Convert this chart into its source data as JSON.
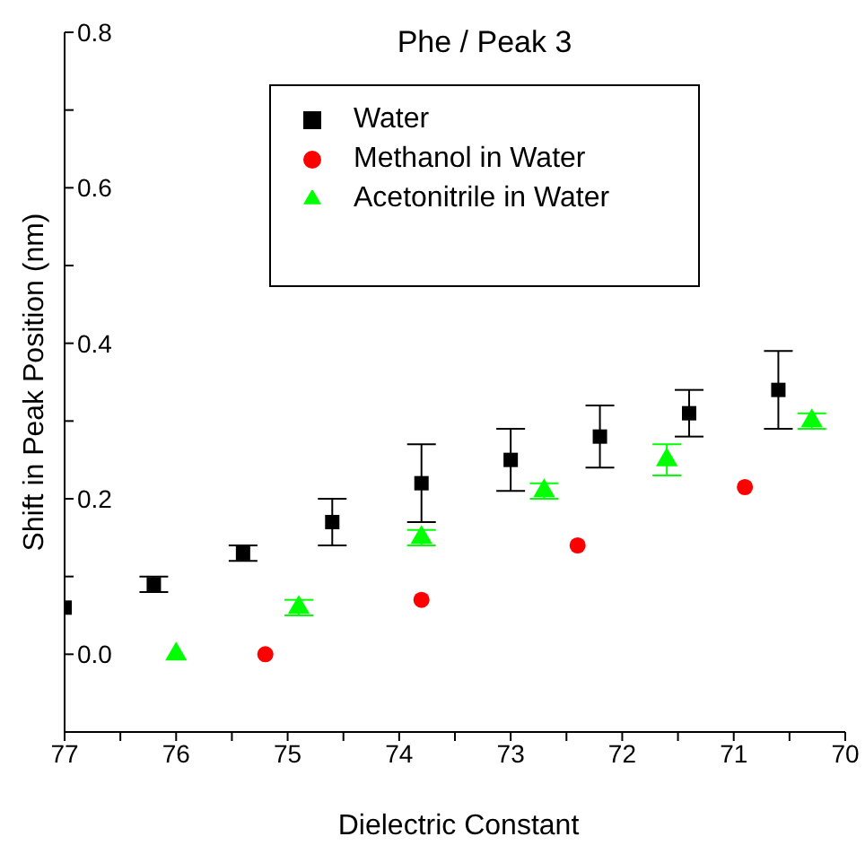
{
  "chart_data": {
    "type": "scatter",
    "title": "Phe / Peak 3",
    "xlabel": "Dielectric Constant",
    "ylabel": "Shift in Peak Position (nm)",
    "xlim": [
      77,
      70
    ],
    "ylim": [
      -0.1,
      0.8
    ],
    "xticks": [
      {
        "value": 77,
        "label": "77"
      },
      {
        "value": 76.5,
        "label": null
      },
      {
        "value": 76,
        "label": "76"
      },
      {
        "value": 75.5,
        "label": null
      },
      {
        "value": 75,
        "label": "75"
      },
      {
        "value": 74.5,
        "label": null
      },
      {
        "value": 74,
        "label": "74"
      },
      {
        "value": 73.5,
        "label": null
      },
      {
        "value": 73,
        "label": "73"
      },
      {
        "value": 72.5,
        "label": null
      },
      {
        "value": 72,
        "label": "72"
      },
      {
        "value": 71.5,
        "label": null
      },
      {
        "value": 71,
        "label": "71"
      },
      {
        "value": 70.5,
        "label": null
      },
      {
        "value": 70,
        "label": "70"
      }
    ],
    "yticks": [
      {
        "value": 0,
        "label": "0.0"
      },
      {
        "value": 0.1,
        "label": null
      },
      {
        "value": 0.2,
        "label": "0.2"
      },
      {
        "value": 0.3,
        "label": null
      },
      {
        "value": 0.4,
        "label": "0.4"
      },
      {
        "value": 0.5,
        "label": null
      },
      {
        "value": 0.6,
        "label": "0.6"
      },
      {
        "value": 0.7,
        "label": null
      },
      {
        "value": 0.8,
        "label": "0.8"
      }
    ],
    "grid": false,
    "legend": "top",
    "series": [
      {
        "name": "Water",
        "color": "#000000",
        "marker": "square",
        "x": [
          77.0,
          76.2,
          75.4,
          74.6,
          73.8,
          73.0,
          72.2,
          71.4,
          70.6
        ],
        "values": [
          0.06,
          0.09,
          0.13,
          0.17,
          0.22,
          0.25,
          0.28,
          0.31,
          0.34
        ],
        "errors": [
          null,
          0.01,
          0.01,
          0.03,
          0.05,
          0.04,
          0.04,
          0.03,
          0.05
        ]
      },
      {
        "name": "Methanol in Water",
        "color": "#ff0000",
        "marker": "circle",
        "x": [
          75.2,
          73.8,
          72.4,
          70.9
        ],
        "values": [
          0.0,
          0.07,
          0.14,
          0.215
        ]
      },
      {
        "name": "Acetonitrile in Water",
        "color": "#00ff00",
        "marker": "triangle",
        "x": [
          76.0,
          74.9,
          73.8,
          72.7,
          71.6,
          70.3
        ],
        "values": [
          0.0,
          0.06,
          0.15,
          0.21,
          0.25,
          0.3
        ],
        "errors": [
          null,
          0.01,
          0.01,
          0.01,
          0.02,
          0.01
        ]
      }
    ]
  }
}
